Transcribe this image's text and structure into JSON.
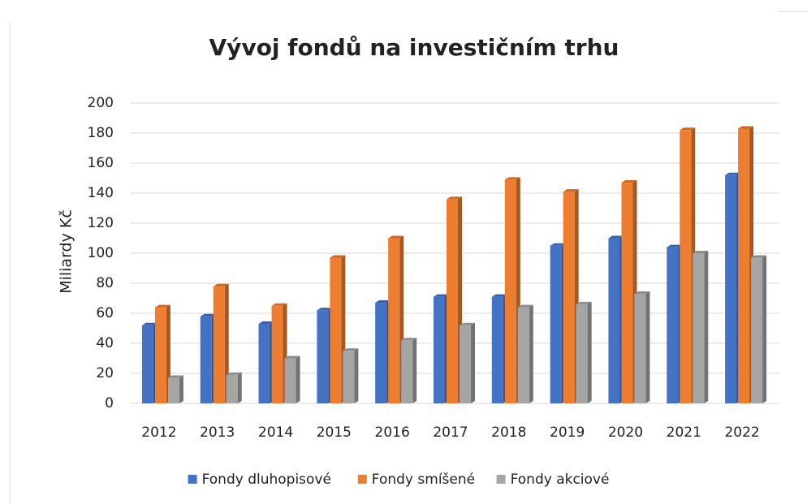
{
  "chart_data": {
    "type": "bar",
    "title": "Vývoj fondů na investičním trhu",
    "y_label": "Miliardy Kč",
    "categories": [
      "2012",
      "2013",
      "2014",
      "2015",
      "2016",
      "2017",
      "2018",
      "2019",
      "2020",
      "2021",
      "2022"
    ],
    "series": [
      {
        "name": "Fondy dluhopisové",
        "color": "#4472c4",
        "values": [
          52,
          58,
          53,
          62,
          67,
          71,
          71,
          105,
          110,
          104,
          152
        ]
      },
      {
        "name": "Fondy smíšené",
        "color": "#ed7d31",
        "values": [
          64,
          78,
          65,
          97,
          110,
          136,
          149,
          141,
          147,
          182,
          183
        ]
      },
      {
        "name": "Fondy akciové",
        "color": "#a5a5a5",
        "values": [
          17,
          19,
          30,
          35,
          42,
          52,
          64,
          66,
          73,
          100,
          97
        ]
      }
    ],
    "ylim": [
      0,
      200
    ],
    "yticks": [
      0,
      20,
      40,
      60,
      80,
      100,
      120,
      140,
      160,
      180,
      200
    ],
    "grid": true,
    "legend": "bottom"
  }
}
